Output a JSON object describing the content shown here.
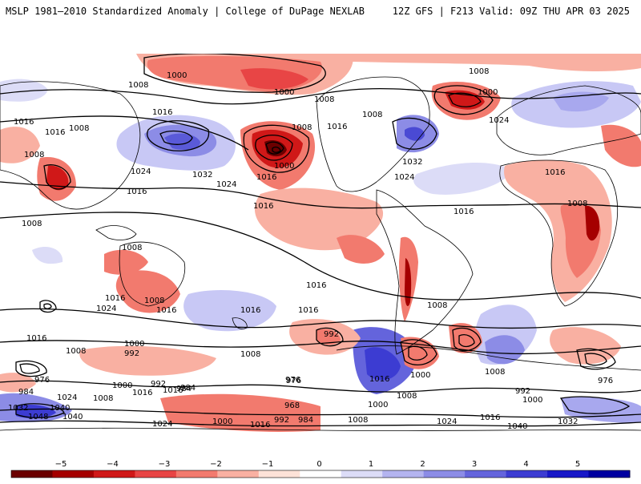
{
  "header": {
    "title_left": "MSLP 1981–2010 Standardized Anomaly | College of DuPage NEXLAB",
    "title_right": "12Z GFS | F213 Valid: 09Z THU APR 03 2025"
  },
  "map": {
    "isobar_labels": [
      "1000",
      "1008",
      "1000",
      "1008",
      "1008",
      "1000",
      "1008",
      "1016",
      "1008",
      "1016",
      "1016",
      "1008",
      "1016",
      "1008",
      "1024",
      "1032",
      "1000",
      "1016",
      "1024",
      "1032",
      "1024",
      "1024",
      "1016",
      "1016",
      "1008",
      "1016",
      "1008",
      "1008",
      "1016",
      "1016",
      "1016",
      "1008",
      "1024",
      "1016",
      "1016",
      "1008",
      "1016",
      "1016",
      "1008",
      "1000",
      "992",
      "1008",
      "992",
      "976",
      "984",
      "992",
      "1016",
      "1000",
      "1024",
      "1016",
      "1008",
      "984",
      "976",
      "1032",
      "1040",
      "1048",
      "1040",
      "1024",
      "1000",
      "1016",
      "992",
      "984",
      "1008",
      "968",
      "976",
      "1000",
      "1008",
      "1016",
      "984",
      "1000",
      "1024",
      "1016",
      "1040",
      "1032",
      "1008",
      "992",
      "1000",
      "976"
    ]
  },
  "colorbar": {
    "ticks": [
      "−5",
      "−4",
      "−3",
      "−2",
      "−1",
      "0",
      "1",
      "2",
      "3",
      "4",
      "5"
    ],
    "colors": [
      "#6b0000",
      "#a50000",
      "#d01818",
      "#e84545",
      "#f27a6e",
      "#f9b0a2",
      "#fde2d8",
      "#ffffff",
      "#dcdcf7",
      "#b4b4ef",
      "#8c8ce6",
      "#6464dc",
      "#3c3cd2",
      "#1818c8",
      "#0000a0"
    ]
  }
}
